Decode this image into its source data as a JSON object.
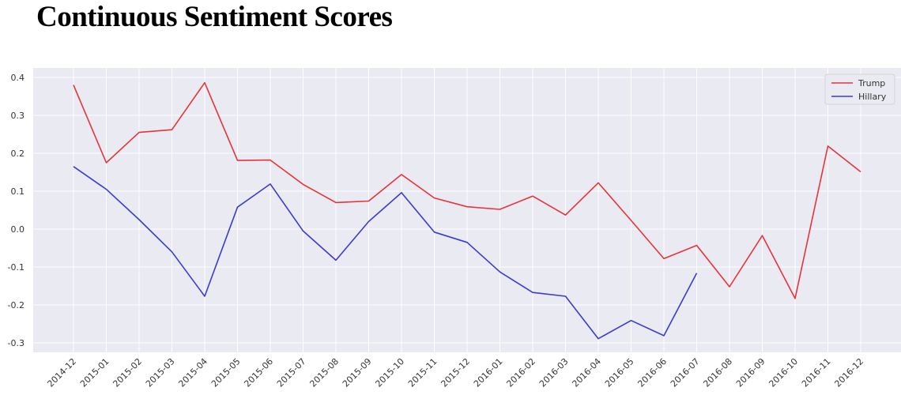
{
  "title": "Continuous Sentiment Scores",
  "chart_data": {
    "type": "line",
    "title": "Continuous Sentiment Scores",
    "xlabel": "",
    "ylabel": "",
    "x": [
      "2014-12",
      "2015-01",
      "2015-02",
      "2015-03",
      "2015-04",
      "2015-05",
      "2015-06",
      "2015-07",
      "2015-08",
      "2015-09",
      "2015-10",
      "2015-11",
      "2015-12",
      "2016-01",
      "2016-02",
      "2016-03",
      "2016-04",
      "2016-05",
      "2016-06",
      "2016-07",
      "2016-08",
      "2016-09",
      "2016-10",
      "2016-11",
      "2016-12"
    ],
    "yticks": [
      "0.4",
      "0.3",
      "0.2",
      "0.1",
      "0.0",
      "-0.1",
      "-0.2",
      "-0.3"
    ],
    "ylim": [
      -0.33,
      0.42
    ],
    "grid": true,
    "legend_position": "top-right",
    "series": [
      {
        "name": "Trump",
        "color": "#e8333a",
        "values": [
          0.38,
          0.175,
          0.255,
          0.262,
          0.386,
          0.181,
          0.182,
          0.118,
          0.07,
          0.074,
          0.144,
          0.082,
          0.059,
          0.052,
          0.087,
          0.037,
          0.122,
          0.023,
          -0.078,
          -0.043,
          -0.152,
          -0.017,
          -0.183,
          0.219,
          0.151
        ]
      },
      {
        "name": "Hillary",
        "color": "#3b3bd1",
        "values": [
          0.165,
          0.105,
          0.025,
          -0.06,
          -0.177,
          0.058,
          0.119,
          -0.005,
          -0.082,
          0.02,
          0.096,
          -0.008,
          -0.035,
          -0.113,
          -0.167,
          -0.177,
          -0.289,
          -0.241,
          -0.281,
          -0.116,
          null,
          null,
          null,
          null,
          null
        ]
      }
    ]
  }
}
